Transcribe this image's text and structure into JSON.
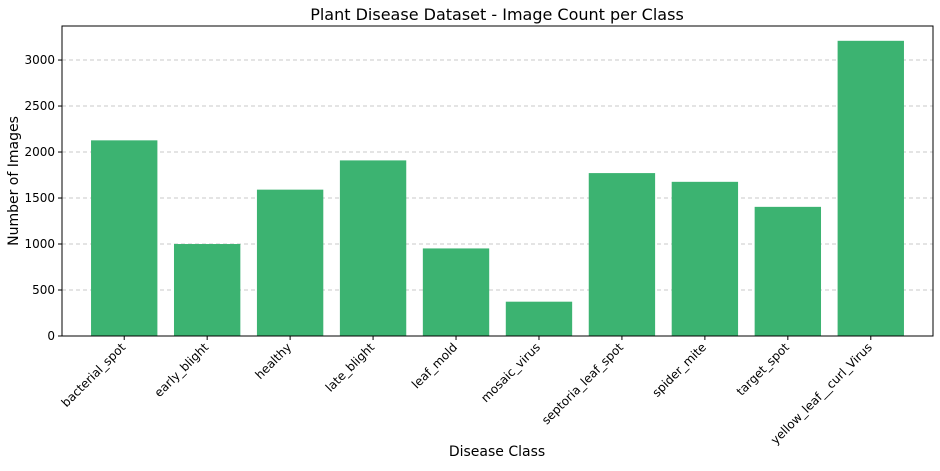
{
  "colors": {
    "bar": "#3cb371",
    "grid": "#c8c8c8",
    "axis": "#000000"
  },
  "chart_data": {
    "type": "bar",
    "title": "Plant Disease Dataset - Image Count per Class",
    "xlabel": "Disease Class",
    "ylabel": "Number of Images",
    "categories": [
      "bacterial_spot",
      "early_blight",
      "healthy",
      "late_blight",
      "leaf_mold",
      "mosaic_virus",
      "septoria_leaf_spot",
      "spider_mite",
      "target_spot",
      "yellow_leaf__curl_Virus"
    ],
    "values": [
      2127,
      1000,
      1591,
      1909,
      952,
      373,
      1771,
      1676,
      1404,
      3209
    ],
    "ylim": [
      0,
      3370
    ],
    "yticks": [
      0,
      500,
      1000,
      1500,
      2000,
      2500,
      3000
    ],
    "grid": "y-dashed",
    "legend": "none"
  }
}
